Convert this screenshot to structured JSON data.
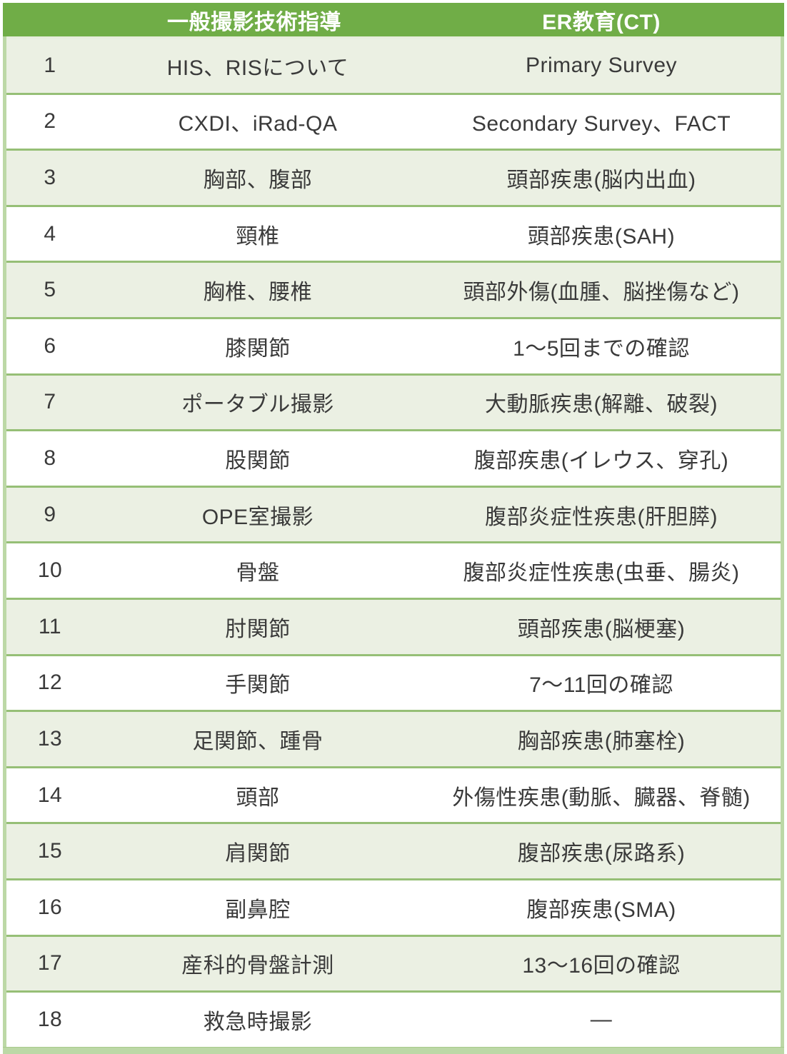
{
  "colors": {
    "header_bg": "#70AD47",
    "header_text": "#FFFFFF",
    "band_row_bg": "#EBF0E3",
    "white_row_bg": "#FFFFFF",
    "row_separator": "#96BF76",
    "outer_border": "#BCD8A6",
    "body_text": "#3A3A3A"
  },
  "table": {
    "columns": [
      {
        "label": ""
      },
      {
        "label": "一般撮影技術指導"
      },
      {
        "label": "ER教育(CT)"
      }
    ],
    "rows": [
      {
        "no": "1",
        "general": "HIS、RISについて",
        "er": "Primary Survey"
      },
      {
        "no": "2",
        "general": "CXDI、iRad-QA",
        "er": "Secondary Survey、FACT"
      },
      {
        "no": "3",
        "general": "胸部、腹部",
        "er": "頭部疾患(脳内出血)"
      },
      {
        "no": "4",
        "general": "頸椎",
        "er": "頭部疾患(SAH)"
      },
      {
        "no": "5",
        "general": "胸椎、腰椎",
        "er": "頭部外傷(血腫、脳挫傷など)"
      },
      {
        "no": "6",
        "general": "膝関節",
        "er": "1〜5回までの確認"
      },
      {
        "no": "7",
        "general": "ポータブル撮影",
        "er": "大動脈疾患(解離、破裂)"
      },
      {
        "no": "8",
        "general": "股関節",
        "er": "腹部疾患(イレウス、穿孔)"
      },
      {
        "no": "9",
        "general": "OPE室撮影",
        "er": "腹部炎症性疾患(肝胆膵)"
      },
      {
        "no": "10",
        "general": "骨盤",
        "er": "腹部炎症性疾患(虫垂、腸炎)"
      },
      {
        "no": "11",
        "general": "肘関節",
        "er": "頭部疾患(脳梗塞)"
      },
      {
        "no": "12",
        "general": "手関節",
        "er": "7〜11回の確認"
      },
      {
        "no": "13",
        "general": "足関節、踵骨",
        "er": "胸部疾患(肺塞栓)"
      },
      {
        "no": "14",
        "general": "頭部",
        "er": "外傷性疾患(動脈、臓器、脊髄)"
      },
      {
        "no": "15",
        "general": "肩関節",
        "er": "腹部疾患(尿路系)"
      },
      {
        "no": "16",
        "general": "副鼻腔",
        "er": "腹部疾患(SMA)"
      },
      {
        "no": "17",
        "general": "産科的骨盤計測",
        "er": "13〜16回の確認"
      },
      {
        "no": "18",
        "general": "救急時撮影",
        "er": "—"
      }
    ]
  }
}
